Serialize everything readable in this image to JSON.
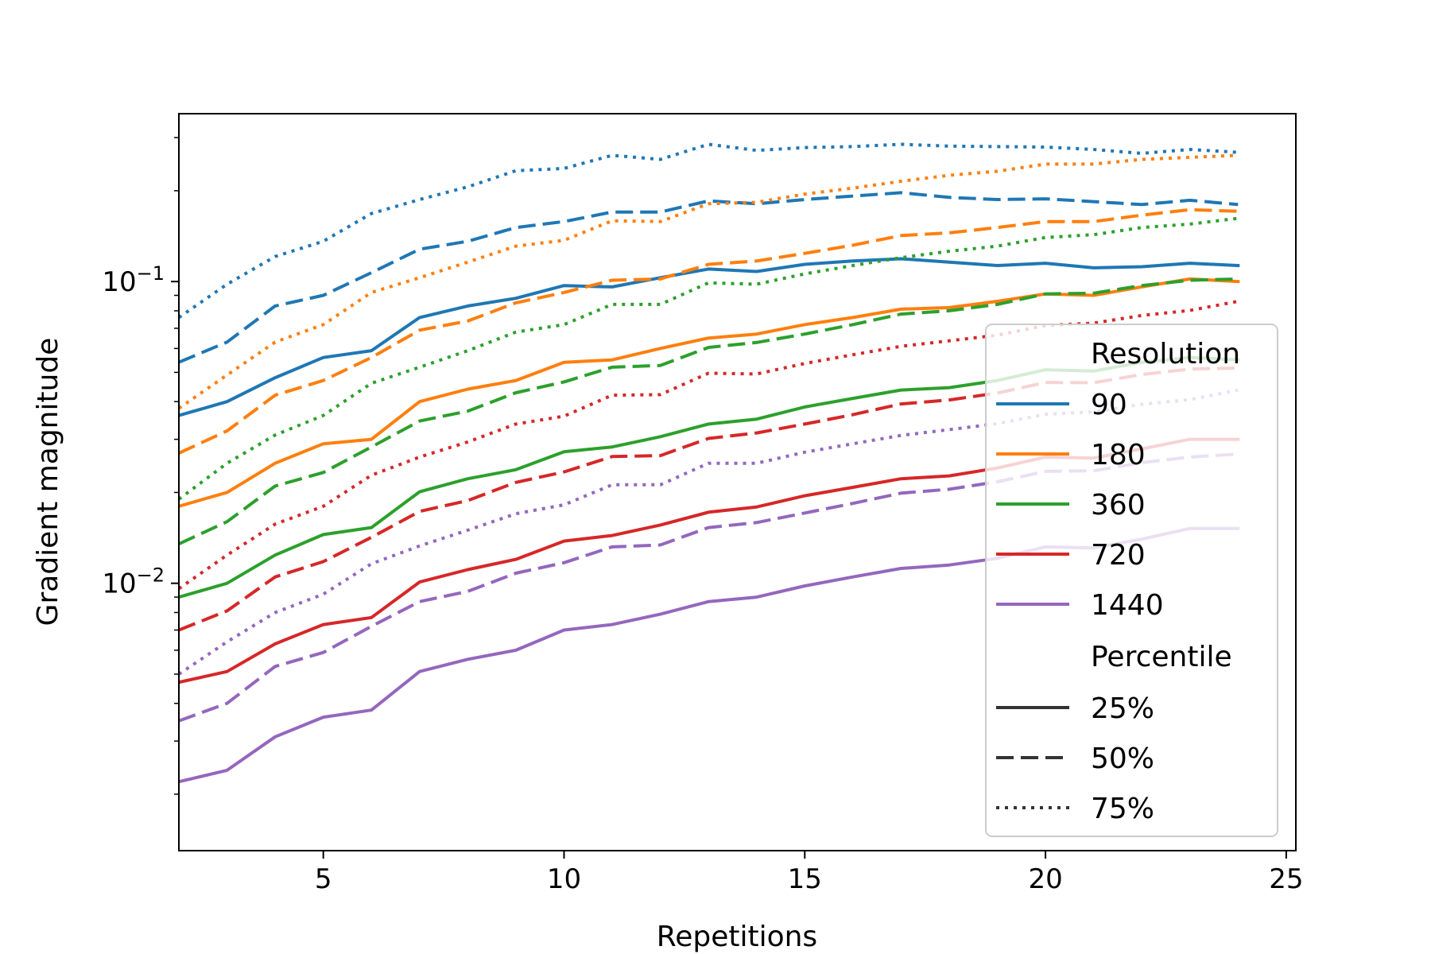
{
  "chart_data": {
    "type": "line",
    "title": "",
    "xlabel": "Repetitions",
    "ylabel": "Gradient magnitude",
    "yscale": "log",
    "xlim": [
      2,
      25.2
    ],
    "ylim": [
      0.0013,
      0.36
    ],
    "xticks": [
      5,
      10,
      15,
      20,
      25
    ],
    "xtick_labels": [
      "5",
      "10",
      "15",
      "20",
      "25"
    ],
    "yticks": [
      0.1,
      0.01
    ],
    "ytick_labels": [
      {
        "base": "10",
        "exp": "−1"
      },
      {
        "base": "10",
        "exp": "−2"
      }
    ],
    "x": [
      2,
      3,
      4,
      5,
      6,
      7,
      8,
      9,
      10,
      11,
      12,
      13,
      14,
      15,
      16,
      17,
      18,
      19,
      20,
      21,
      22,
      23,
      24
    ],
    "legend": {
      "placement": "right",
      "resolution_title": "Resolution",
      "percentile_title": "Percentile",
      "resolution_entries": [
        {
          "label": "90",
          "color": "#1f77b4"
        },
        {
          "label": "180",
          "color": "#ff7f0e"
        },
        {
          "label": "360",
          "color": "#2ca02c"
        },
        {
          "label": "720",
          "color": "#d62728"
        },
        {
          "label": "1440",
          "color": "#9467bd"
        }
      ],
      "percentile_entries": [
        {
          "label": "25%",
          "style": "solid"
        },
        {
          "label": "50%",
          "style": "dashed"
        },
        {
          "label": "75%",
          "style": "dotted"
        }
      ]
    },
    "series": [
      {
        "name": "90 25%",
        "resolution": "90",
        "percentile": "25%",
        "color": "#1f77b4",
        "style": "solid",
        "values": [
          0.036,
          0.04,
          0.048,
          0.056,
          0.059,
          0.076,
          0.083,
          0.088,
          0.097,
          0.096,
          0.103,
          0.11,
          0.108,
          0.114,
          0.117,
          0.119,
          0.116,
          0.113,
          0.115,
          0.111,
          0.112,
          0.115,
          0.113
        ]
      },
      {
        "name": "90 50%",
        "resolution": "90",
        "percentile": "50%",
        "color": "#1f77b4",
        "style": "dashed",
        "values": [
          0.054,
          0.063,
          0.083,
          0.09,
          0.107,
          0.128,
          0.136,
          0.151,
          0.158,
          0.17,
          0.17,
          0.185,
          0.181,
          0.187,
          0.192,
          0.197,
          0.19,
          0.187,
          0.188,
          0.184,
          0.18,
          0.186,
          0.18
        ]
      },
      {
        "name": "90 75%",
        "resolution": "90",
        "percentile": "75%",
        "color": "#1f77b4",
        "style": "dotted",
        "values": [
          0.076,
          0.098,
          0.121,
          0.136,
          0.168,
          0.187,
          0.206,
          0.233,
          0.237,
          0.262,
          0.254,
          0.285,
          0.272,
          0.278,
          0.28,
          0.285,
          0.281,
          0.28,
          0.279,
          0.274,
          0.266,
          0.274,
          0.268
        ]
      },
      {
        "name": "180 25%",
        "resolution": "180",
        "percentile": "25%",
        "color": "#ff7f0e",
        "style": "solid",
        "values": [
          0.018,
          0.02,
          0.025,
          0.029,
          0.03,
          0.04,
          0.044,
          0.047,
          0.054,
          0.055,
          0.06,
          0.065,
          0.067,
          0.072,
          0.076,
          0.081,
          0.082,
          0.086,
          0.091,
          0.09,
          0.096,
          0.102,
          0.1
        ]
      },
      {
        "name": "180 50%",
        "resolution": "180",
        "percentile": "50%",
        "color": "#ff7f0e",
        "style": "dashed",
        "values": [
          0.027,
          0.032,
          0.042,
          0.047,
          0.056,
          0.069,
          0.074,
          0.085,
          0.092,
          0.101,
          0.102,
          0.114,
          0.117,
          0.124,
          0.132,
          0.142,
          0.145,
          0.151,
          0.158,
          0.158,
          0.166,
          0.173,
          0.171
        ]
      },
      {
        "name": "180 75%",
        "resolution": "180",
        "percentile": "75%",
        "color": "#ff7f0e",
        "style": "dotted",
        "values": [
          0.038,
          0.049,
          0.063,
          0.072,
          0.092,
          0.103,
          0.116,
          0.131,
          0.137,
          0.159,
          0.158,
          0.181,
          0.183,
          0.195,
          0.204,
          0.215,
          0.225,
          0.232,
          0.245,
          0.245,
          0.254,
          0.258,
          0.262
        ]
      },
      {
        "name": "360 25%",
        "resolution": "360",
        "percentile": "25%",
        "color": "#2ca02c",
        "style": "solid",
        "values": [
          0.009,
          0.01,
          0.0124,
          0.0145,
          0.0153,
          0.0201,
          0.0222,
          0.0238,
          0.0273,
          0.0283,
          0.0306,
          0.0337,
          0.035,
          0.0384,
          0.041,
          0.0437,
          0.0445,
          0.047,
          0.051,
          0.0505,
          0.054,
          0.056,
          0.055
        ]
      },
      {
        "name": "360 50%",
        "resolution": "360",
        "percentile": "50%",
        "color": "#2ca02c",
        "style": "dashed",
        "values": [
          0.0135,
          0.016,
          0.021,
          0.0233,
          0.0283,
          0.0345,
          0.0372,
          0.0428,
          0.0465,
          0.052,
          0.0527,
          0.0605,
          0.0628,
          0.067,
          0.072,
          0.078,
          0.08,
          0.084,
          0.091,
          0.0915,
          0.097,
          0.101,
          0.102
        ]
      },
      {
        "name": "360 75%",
        "resolution": "360",
        "percentile": "75%",
        "color": "#2ca02c",
        "style": "dotted",
        "values": [
          0.019,
          0.025,
          0.031,
          0.036,
          0.046,
          0.052,
          0.059,
          0.068,
          0.072,
          0.084,
          0.084,
          0.099,
          0.098,
          0.106,
          0.113,
          0.12,
          0.126,
          0.131,
          0.14,
          0.143,
          0.151,
          0.155,
          0.162
        ]
      },
      {
        "name": "720 25%",
        "resolution": "720",
        "percentile": "25%",
        "color": "#d62728",
        "style": "solid",
        "values": [
          0.0047,
          0.0051,
          0.0063,
          0.0073,
          0.0077,
          0.0101,
          0.0111,
          0.012,
          0.0138,
          0.0144,
          0.0156,
          0.0172,
          0.0179,
          0.0195,
          0.0208,
          0.0222,
          0.0227,
          0.0241,
          0.0262,
          0.026,
          0.0279,
          0.03,
          0.03
        ]
      },
      {
        "name": "720 50%",
        "resolution": "720",
        "percentile": "50%",
        "color": "#d62728",
        "style": "dashed",
        "values": [
          0.007,
          0.0081,
          0.0105,
          0.0118,
          0.0142,
          0.0173,
          0.0188,
          0.0216,
          0.0234,
          0.0263,
          0.0265,
          0.0302,
          0.0315,
          0.0337,
          0.0362,
          0.0393,
          0.0405,
          0.0427,
          0.0463,
          0.0462,
          0.0492,
          0.0513,
          0.0517
        ]
      },
      {
        "name": "720 75%",
        "resolution": "720",
        "percentile": "75%",
        "color": "#d62728",
        "style": "dotted",
        "values": [
          0.0096,
          0.0124,
          0.0157,
          0.018,
          0.0228,
          0.0262,
          0.0294,
          0.0337,
          0.0358,
          0.042,
          0.0422,
          0.0497,
          0.0494,
          0.0535,
          0.0572,
          0.061,
          0.0636,
          0.0664,
          0.0715,
          0.0728,
          0.0772,
          0.0802,
          0.086
        ]
      },
      {
        "name": "1440 25%",
        "resolution": "1440",
        "percentile": "25%",
        "color": "#9467bd",
        "style": "solid",
        "values": [
          0.0022,
          0.0024,
          0.0031,
          0.0036,
          0.0038,
          0.0051,
          0.0056,
          0.006,
          0.007,
          0.0073,
          0.0079,
          0.0087,
          0.009,
          0.0098,
          0.0105,
          0.0112,
          0.0115,
          0.0121,
          0.0132,
          0.0131,
          0.014,
          0.0152,
          0.0152
        ]
      },
      {
        "name": "1440 50%",
        "resolution": "1440",
        "percentile": "50%",
        "color": "#9467bd",
        "style": "dashed",
        "values": [
          0.0035,
          0.004,
          0.0053,
          0.0059,
          0.0072,
          0.0087,
          0.0094,
          0.0108,
          0.0117,
          0.0132,
          0.0134,
          0.0153,
          0.0159,
          0.0171,
          0.0184,
          0.0199,
          0.0205,
          0.0217,
          0.0235,
          0.0236,
          0.0251,
          0.0262,
          0.0268
        ]
      },
      {
        "name": "1440 75%",
        "resolution": "1440",
        "percentile": "75%",
        "color": "#9467bd",
        "style": "dotted",
        "values": [
          0.005,
          0.0064,
          0.008,
          0.0092,
          0.0116,
          0.0133,
          0.015,
          0.017,
          0.0182,
          0.0212,
          0.0212,
          0.025,
          0.025,
          0.0272,
          0.029,
          0.0309,
          0.0323,
          0.0338,
          0.0363,
          0.037,
          0.0392,
          0.0406,
          0.0437
        ]
      }
    ]
  }
}
